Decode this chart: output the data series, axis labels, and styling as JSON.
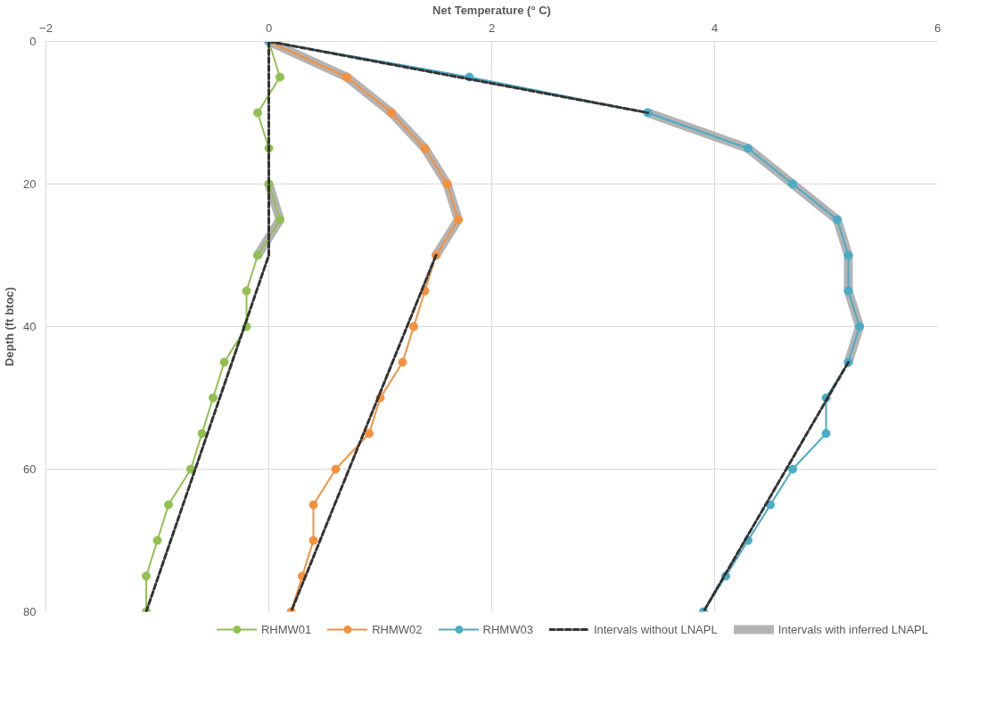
{
  "chart_data": {
    "type": "line",
    "xlabel": "Net Temperature (° C)",
    "ylabel": "Depth (ft btoc)",
    "xlim": [
      -2,
      6
    ],
    "xticks": [
      -2,
      0,
      2,
      4,
      6
    ],
    "ylim": [
      80,
      0
    ],
    "yticks": [
      0,
      20,
      40,
      60,
      80
    ],
    "grid": true,
    "legend": "bottom",
    "marker": "circle",
    "series": [
      {
        "name": "RHMW01",
        "color": "#92c050",
        "x": [
          0,
          0.1,
          -0.1,
          0,
          0,
          0.1,
          -0.1,
          -0.2,
          -0.2,
          -0.4,
          -0.5,
          -0.6,
          -0.7,
          -0.9,
          -1.0,
          -1.1,
          -1.1
        ],
        "values": [
          0,
          5,
          10,
          15,
          20,
          25,
          30,
          35,
          40,
          45,
          50,
          55,
          60,
          65,
          70,
          75,
          80
        ]
      },
      {
        "name": "RHMW02",
        "color": "#f4913e",
        "x": [
          0,
          0.7,
          1.1,
          1.4,
          1.6,
          1.7,
          1.5,
          1.4,
          1.3,
          1.2,
          1.0,
          0.9,
          0.6,
          0.4,
          0.4,
          0.3,
          0.2
        ],
        "values": [
          0,
          5,
          10,
          15,
          20,
          25,
          30,
          35,
          40,
          45,
          50,
          55,
          60,
          65,
          70,
          75,
          80
        ]
      },
      {
        "name": "RHMW03",
        "color": "#4aacc5",
        "x": [
          0,
          1.8,
          3.4,
          4.3,
          4.7,
          5.1,
          5.2,
          5.2,
          5.3,
          5.2,
          5.0,
          5.0,
          4.7,
          4.5,
          4.3,
          4.1,
          3.9
        ],
        "values": [
          0,
          5,
          10,
          15,
          20,
          25,
          30,
          35,
          40,
          45,
          50,
          55,
          60,
          65,
          70,
          75,
          80
        ]
      },
      {
        "name": "Intervals without LNAPL",
        "color": "#333333",
        "marker": "none",
        "line_style": "dashed",
        "x": [
          0,
          0,
          -1.1,
          null,
          1.5,
          0.2,
          null,
          0,
          3.4,
          null,
          5.2,
          3.9
        ],
        "values": [
          0,
          30,
          80,
          null,
          30,
          80,
          null,
          0,
          10,
          null,
          45,
          80
        ]
      },
      {
        "name": "Intervals with inferred LNAPL",
        "color": "#a6a6a6",
        "marker": "none",
        "line_style": "solid",
        "x": [
          0,
          0.1,
          -0.1,
          null,
          0,
          0.7,
          1.1,
          1.4,
          1.6,
          1.7,
          1.5,
          null,
          3.4,
          4.3,
          4.7,
          5.1,
          5.2,
          5.2,
          5.3,
          5.2
        ],
        "values": [
          20,
          25,
          30,
          null,
          0,
          5,
          10,
          15,
          20,
          25,
          30,
          null,
          10,
          15,
          20,
          25,
          30,
          35,
          40,
          45
        ]
      }
    ]
  }
}
